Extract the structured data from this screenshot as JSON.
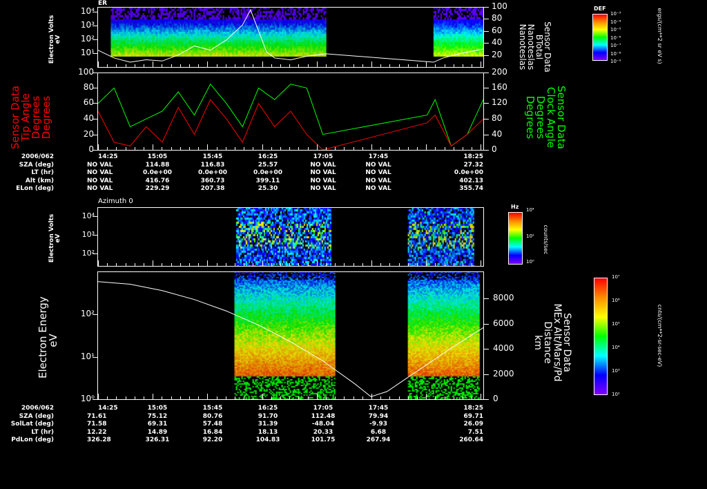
{
  "colors": {
    "tip_angle": "#ff0000",
    "clock_angle": "#00ff00",
    "btotal": "#ffffff",
    "altitude": "#ffffff"
  },
  "panel1": {
    "title": "ER",
    "ylabel": [
      "Electron Volts",
      "eV"
    ],
    "yticks": [
      "10⁴",
      "10³",
      "10²",
      "10¹"
    ],
    "right_ticks": [
      "100",
      "80",
      "60",
      "40",
      "20"
    ],
    "right_label": [
      "Sensor Data",
      "BTotal",
      "Nanoteslas",
      "Nanoteslas"
    ],
    "colorbar": {
      "title": "DEF",
      "ticks": [
        "10⁻³",
        "10⁻⁴",
        "10⁻⁵",
        "10⁻⁶",
        "10⁻⁷",
        "10⁻⁸",
        "10⁻⁹"
      ],
      "unit": "ergs/(cm**2 sr eV s)"
    }
  },
  "panel2": {
    "left_ticks": [
      "100",
      "80",
      "60",
      "40",
      "20",
      "0"
    ],
    "right_ticks": [
      "200",
      "160",
      "120",
      "80",
      "40",
      "0"
    ],
    "left_label": [
      "Sensor Data",
      "Tip Angle",
      "Degrees",
      "Degrees"
    ],
    "right_label": [
      "Sensor Data",
      "Clock Angle",
      "Degrees",
      "Degrees"
    ]
  },
  "table1": {
    "labels": [
      "2006/062",
      "SZA (deg)",
      "LT (hr)",
      "Alt (km)",
      "ELon (deg)"
    ],
    "times": [
      "14:25",
      "15:05",
      "15:45",
      "16:25",
      "17:05",
      "17:45",
      "18:25"
    ],
    "rows": [
      [
        "NO VAL",
        "114.88",
        "116.83",
        "25.57",
        "NO VAL",
        "NO VAL",
        "27.32"
      ],
      [
        "NO VAL",
        "0.0e+00",
        "0.0e+00",
        "0.0e+00",
        "NO VAL",
        "NO VAL",
        "0.0e+00"
      ],
      [
        "NO VAL",
        "416.76",
        "360.73",
        "399.11",
        "NO VAL",
        "NO VAL",
        "402.13"
      ],
      [
        "NO VAL",
        "229.29",
        "207.38",
        "25.30",
        "NO VAL",
        "NO VAL",
        "355.74"
      ]
    ]
  },
  "panel3": {
    "title": "Azimuth 0",
    "ylabel": [
      "Electron Volts",
      "eV"
    ],
    "yticks": [
      "10⁴",
      "10³",
      "10²"
    ],
    "colorbar": {
      "title": "Hz",
      "ticks": [
        "10⁴",
        "10²",
        "10⁰"
      ],
      "unit": "counts/sec"
    }
  },
  "panel4": {
    "ylabel": [
      "Electron Energy",
      "eV"
    ],
    "yticks": [
      "10²",
      "10¹",
      "10⁰"
    ],
    "right_ticks": [
      "8000",
      "6000",
      "4000",
      "2000",
      "0"
    ],
    "right_label": [
      "Sensor Data",
      "MEx Alt/Mars/Pd",
      "Distance",
      "km"
    ],
    "colorbar": {
      "ticks": [
        "10⁷",
        "10⁶",
        "10⁵",
        "10⁴",
        "10³",
        "10²"
      ],
      "unit": "cnts/(cm**2-sr-sec-eV)"
    }
  },
  "table2": {
    "labels": [
      "2006/062",
      "SZA (deg)",
      "SolLat (deg)",
      "LT (hr)",
      "PdLon (deg)"
    ],
    "times": [
      "14:25",
      "15:05",
      "15:45",
      "16:25",
      "17:05",
      "17:45",
      "18:25"
    ],
    "rows": [
      [
        "71.61",
        "75.12",
        "80.76",
        "91.70",
        "112.48",
        "79.94",
        "69.71"
      ],
      [
        "71.58",
        "69.31",
        "57.48",
        "31.39",
        "-48.04",
        "-9.93",
        "26.09"
      ],
      [
        "12.22",
        "14.89",
        "16.84",
        "18.13",
        "20.33",
        "6.68",
        "7.51"
      ],
      [
        "326.28",
        "326.31",
        "92.20",
        "104.83",
        "101.75",
        "267.94",
        "260.64"
      ]
    ]
  },
  "chart_data": [
    {
      "type": "heatmap",
      "title": "ER",
      "x_range_min": [
        0,
        240
      ],
      "x_start": "14:25",
      "ylabel": "Electron Volts eV",
      "yscale": "log",
      "ylim": [
        1,
        20000
      ],
      "data_gaps_min": [
        [
          0,
          5
        ],
        [
          142,
          209
        ]
      ],
      "overlay": {
        "name": "BTotal (nT)",
        "ylim": [
          0,
          100
        ],
        "x_min": [
          0,
          10,
          20,
          30,
          40,
          50,
          60,
          70,
          80,
          90,
          95,
          100,
          105,
          110,
          120,
          130,
          142,
          209,
          215,
          225,
          240
        ],
        "values": [
          28,
          15,
          8,
          12,
          10,
          20,
          35,
          28,
          45,
          70,
          95,
          60,
          25,
          15,
          12,
          18,
          22,
          8,
          15,
          22,
          30
        ]
      }
    },
    {
      "type": "line",
      "x_range_min": [
        0,
        240
      ],
      "series": [
        {
          "name": "Tip Angle (deg)",
          "axis": "left",
          "ylim": [
            0,
            100
          ],
          "x_min": [
            0,
            10,
            20,
            30,
            40,
            50,
            60,
            70,
            80,
            90,
            100,
            110,
            120,
            130,
            140,
            205,
            210,
            220,
            230,
            240
          ],
          "values": [
            50,
            10,
            5,
            30,
            10,
            55,
            20,
            65,
            40,
            10,
            60,
            30,
            50,
            20,
            0,
            35,
            45,
            5,
            20,
            40
          ]
        },
        {
          "name": "Clock Angle (deg)",
          "axis": "right",
          "ylim": [
            0,
            200
          ],
          "x_min": [
            0,
            10,
            20,
            30,
            40,
            50,
            60,
            70,
            80,
            90,
            100,
            110,
            120,
            130,
            140,
            205,
            210,
            220,
            230,
            240
          ],
          "values": [
            120,
            160,
            60,
            80,
            100,
            150,
            90,
            170,
            120,
            60,
            160,
            130,
            170,
            160,
            40,
            90,
            130,
            10,
            40,
            130
          ]
        }
      ]
    },
    {
      "type": "heatmap",
      "title": "Azimuth 0",
      "ylabel": "Electron Volts eV",
      "yscale": "log",
      "ylim": [
        20,
        20000
      ],
      "data_intervals_min": [
        [
          86,
          145
        ],
        [
          193,
          234
        ]
      ]
    },
    {
      "type": "heatmap",
      "ylabel": "Electron Energy eV",
      "yscale": "log",
      "ylim": [
        1,
        1000
      ],
      "data_intervals_min": [
        [
          85,
          147
        ],
        [
          193,
          237
        ]
      ],
      "overlay": {
        "name": "MEx Alt/Mars/Pd Distance (km)",
        "ylim": [
          0,
          10000
        ],
        "x_min": [
          0,
          20,
          40,
          60,
          80,
          100,
          120,
          140,
          160,
          170,
          180,
          200,
          220,
          240
        ],
        "values": [
          9200,
          9000,
          8500,
          7800,
          6900,
          5800,
          4500,
          3000,
          1200,
          200,
          600,
          2300,
          4000,
          5600
        ]
      }
    }
  ]
}
